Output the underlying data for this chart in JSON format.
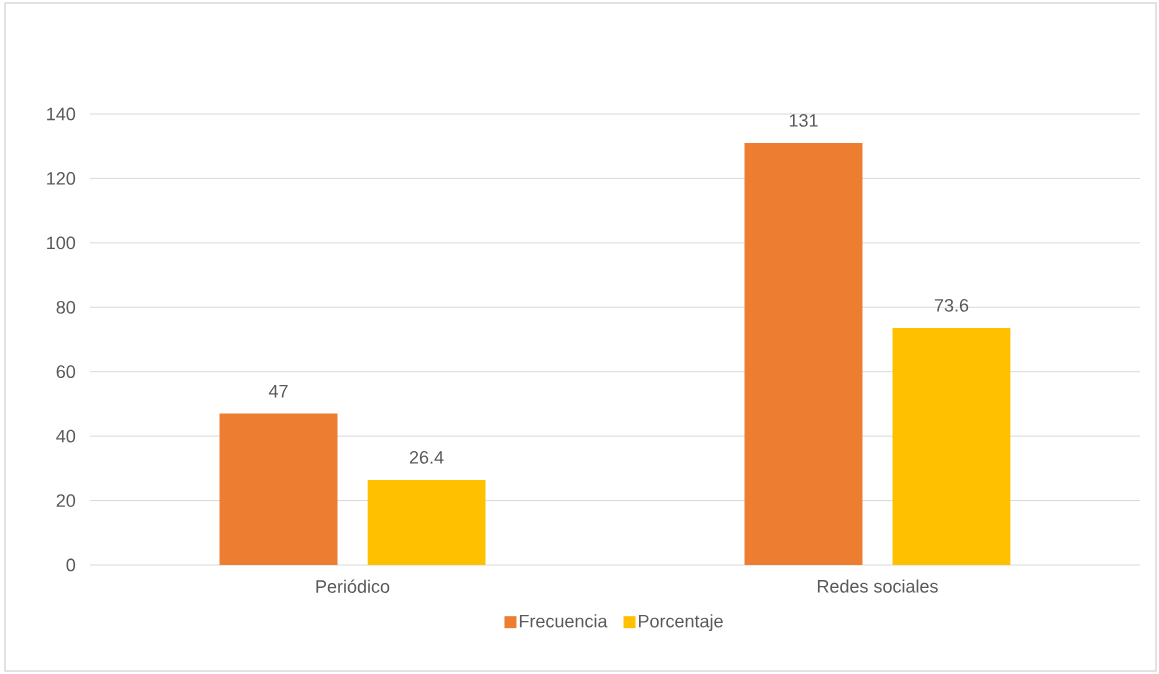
{
  "chart_data": {
    "type": "bar",
    "categories": [
      "Periódico",
      "Redes sociales"
    ],
    "series": [
      {
        "name": "Frecuencia",
        "color": "#ed7d31",
        "values": [
          47,
          131
        ]
      },
      {
        "name": "Porcentaje",
        "color": "#ffc000",
        "values": [
          26.4,
          73.6
        ]
      }
    ],
    "ylim": [
      0,
      140
    ],
    "yticks": [
      0,
      20,
      40,
      60,
      80,
      100,
      120,
      140
    ],
    "grid": "y",
    "legend": "bottom",
    "data_labels": true
  }
}
